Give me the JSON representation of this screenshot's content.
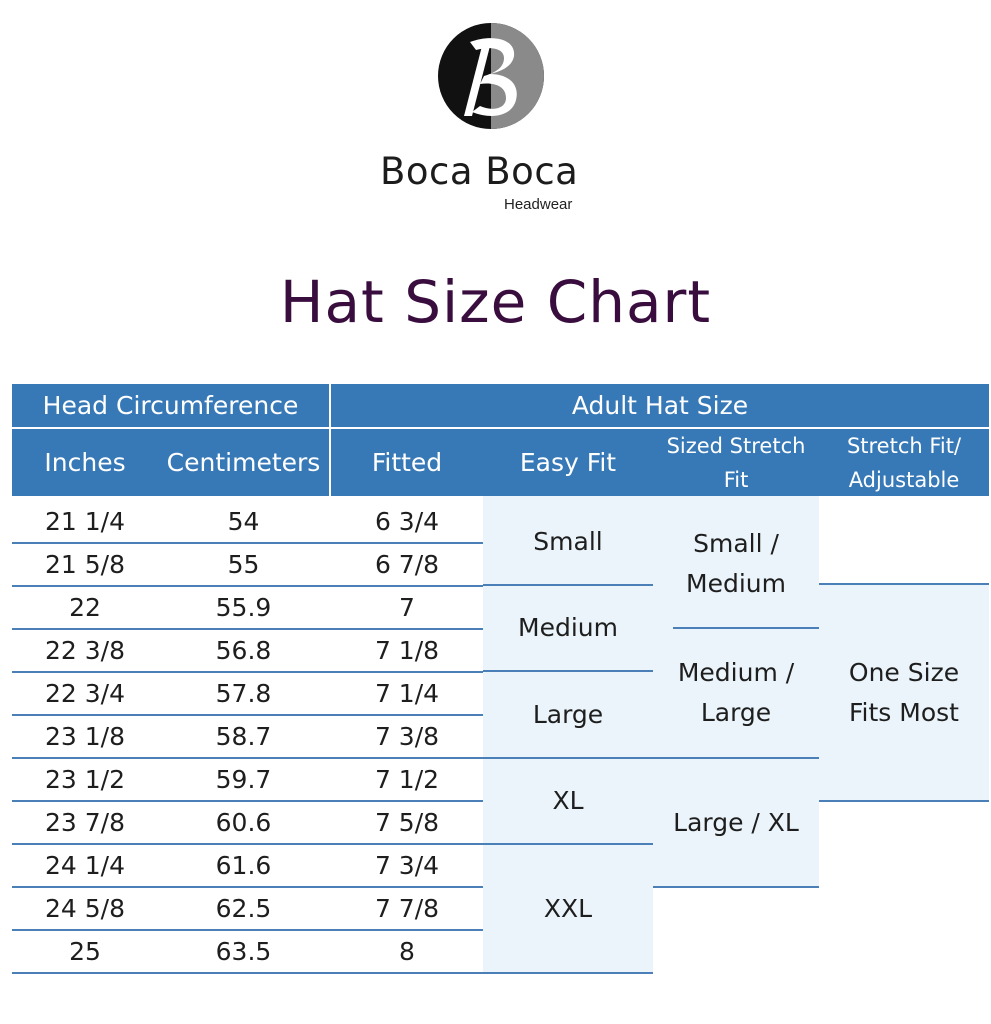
{
  "brand": {
    "name": "Boca Boca",
    "sub": "Headwear"
  },
  "title": "Hat Size Chart",
  "header": {
    "group_left": "Head Circumference",
    "group_right": "Adult Hat Size",
    "columns": [
      "Inches",
      "Centimeters",
      "Fitted",
      "Easy Fit",
      "Sized Stretch Fit",
      "Stretch Fit/ Adjustable"
    ]
  },
  "rows": [
    {
      "inches": "21 1/4",
      "cm": "54",
      "fitted": "6 3/4"
    },
    {
      "inches": "21 5/8",
      "cm": "55",
      "fitted": "6 7/8"
    },
    {
      "inches": "22",
      "cm": "55.9",
      "fitted": "7"
    },
    {
      "inches": "22 3/8",
      "cm": "56.8",
      "fitted": "7 1/8"
    },
    {
      "inches": "22 3/4",
      "cm": "57.8",
      "fitted": "7 1/4"
    },
    {
      "inches": "23 1/8",
      "cm": "58.7",
      "fitted": "7 3/8"
    },
    {
      "inches": "23 1/2",
      "cm": "59.7",
      "fitted": "7 1/2"
    },
    {
      "inches": "23 7/8",
      "cm": "60.6",
      "fitted": "7 5/8"
    },
    {
      "inches": "24 1/4",
      "cm": "61.6",
      "fitted": "7 3/4"
    },
    {
      "inches": "24 5/8",
      "cm": "62.5",
      "fitted": "7 7/8"
    },
    {
      "inches": "25",
      "cm": "63.5",
      "fitted": "8"
    }
  ],
  "easy_fit": [
    "Small",
    "Medium",
    "Large",
    "XL",
    "XXL"
  ],
  "sized_stretch": [
    "Small / Medium",
    "Medium / Large",
    "Large / XL"
  ],
  "stretch_adjustable": [
    "One Size Fits Most"
  ],
  "colors": {
    "header": "#3779b7",
    "title": "#3a0d3f",
    "band_light": "#e9f4fa",
    "band_lighter": "#f3f9fc"
  }
}
